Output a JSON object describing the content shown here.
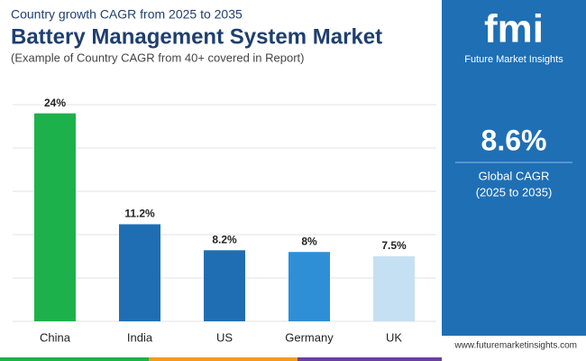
{
  "header": {
    "kicker": "Country growth CAGR from 2025 to 2035",
    "title": "Battery Management System Market",
    "note": "(Example of Country CAGR from 40+ covered in Report)"
  },
  "chart_data": {
    "type": "bar",
    "categories": [
      "China",
      "India",
      "US",
      "Germany",
      "UK"
    ],
    "values": [
      24,
      11.2,
      8.2,
      8,
      7.5
    ],
    "value_labels": [
      "24%",
      "11.2%",
      "8.2%",
      "8%",
      "7.5%"
    ],
    "colors": [
      "#1db14b",
      "#1f6eb3",
      "#1f6eb3",
      "#2f8fd6",
      "#c6e0f3"
    ],
    "ylim": [
      0,
      25
    ],
    "yticks": [
      0,
      5,
      10,
      15,
      20,
      25
    ],
    "grid": true
  },
  "sidebar": {
    "logo": "fmi",
    "brand": "Future Market Insights",
    "stat": "8.6%",
    "stat_label": "Global CAGR",
    "stat_period": "(2025 to 2035)"
  },
  "footer": {
    "url": "www.futuremarketinsights.com"
  }
}
